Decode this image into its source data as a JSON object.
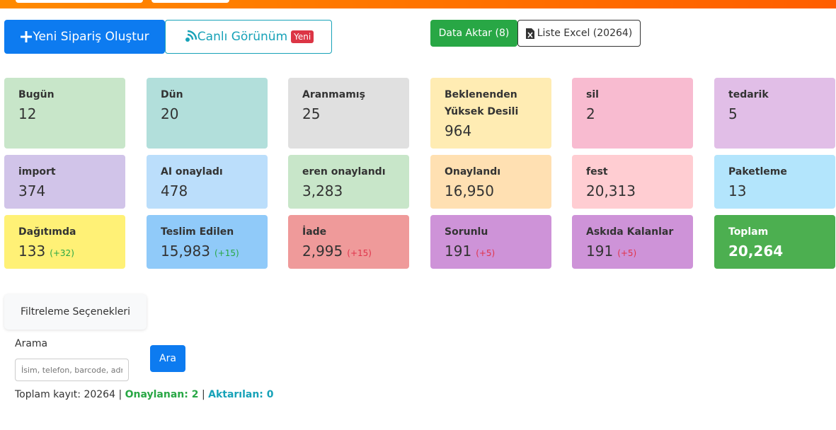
{
  "toolbar": {
    "new_order": "Yeni Sipariş Oluştur",
    "live_view": "Canlı Görünüm",
    "live_badge": "Yeni",
    "data_export": "Data Aktar (8)",
    "excel_list": "Liste Excel (20264)"
  },
  "cards": [
    {
      "label": "Bugün",
      "value": "12"
    },
    {
      "label": "Dün",
      "value": "20"
    },
    {
      "label": "Aranmamış",
      "value": "25"
    },
    {
      "label": "Beklenenden Yüksek Desili",
      "value": "964"
    },
    {
      "label": "sil",
      "value": "2"
    },
    {
      "label": "tedarik",
      "value": "5"
    },
    {
      "label": "import",
      "value": "374"
    },
    {
      "label": "AI onayladı",
      "value": "478"
    },
    {
      "label": "eren onaylandı",
      "value": "3,283"
    },
    {
      "label": "Onaylandı",
      "value": "16,950"
    },
    {
      "label": "fest",
      "value": "20,313"
    },
    {
      "label": "Paketleme",
      "value": "13"
    },
    {
      "label": "Dağıtımda",
      "value": "133",
      "delta": "(+32)"
    },
    {
      "label": "Teslim Edilen",
      "value": "15,983",
      "delta": "(+15)"
    },
    {
      "label": "İade",
      "value": "2,995",
      "delta": "(+15)"
    },
    {
      "label": "Sorunlu",
      "value": "191",
      "delta": "(+5)"
    },
    {
      "label": "Askıda Kalanlar",
      "value": "191",
      "delta": "(+5)"
    },
    {
      "label": "Toplam",
      "value": "20,264"
    }
  ],
  "filter": {
    "title": "Filtreleme Seçenekleri",
    "search_label": "Arama",
    "search_placeholder": "İsim, telefon, barcode, adre",
    "search_button": "Ara"
  },
  "summary": {
    "total": "Toplam kayıt: 20264",
    "separator": "|",
    "approved": "Onaylanan: 2",
    "transferred": "Aktarılan: 0"
  }
}
